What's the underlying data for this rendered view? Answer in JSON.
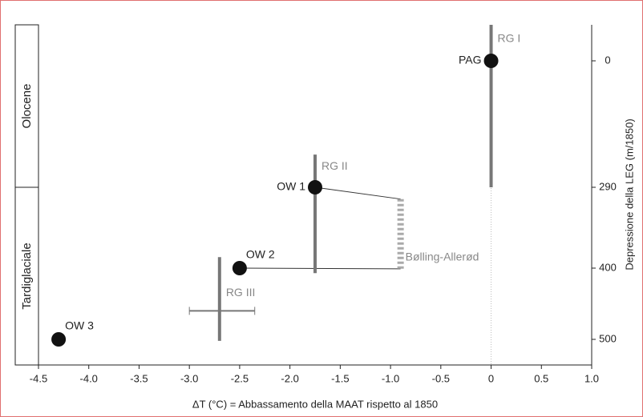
{
  "chart_data": {
    "type": "scatter",
    "xlabel": "ΔT (°C) = Abbassamento della MAAT rispetto al 1850",
    "ylabel": "Depressione della LEG (m/1850)",
    "xlim": [
      -4.5,
      1.0
    ],
    "xticks": [
      -4.5,
      {
        "value": -4.0,
        "label": "-4.0"
      },
      -3.5,
      {
        "value": -3.0,
        "label": "-3.0"
      },
      -2.5,
      {
        "value": -2.0,
        "label": "-2.0"
      },
      -1.5,
      {
        "value": -1.0,
        "label": "-1.0"
      },
      -0.5,
      0,
      0.5,
      {
        "value": 1.0,
        "label": "1.0"
      }
    ],
    "ylim": [
      -80,
      535
    ],
    "yticks": [
      0,
      290,
      400,
      500
    ],
    "periods": [
      {
        "label": "Olocene",
        "y": [
          -80,
          290
        ]
      },
      {
        "label": "Tardiglaciale",
        "y": [
          290,
          535
        ]
      }
    ],
    "points": [
      {
        "label": "PAG",
        "x": 0,
        "y": 0
      },
      {
        "label": "OW 1",
        "x": -1.75,
        "y": 290
      },
      {
        "label": "OW 2",
        "x": -2.5,
        "y": 400
      },
      {
        "label": "OW 3",
        "x": -4.3,
        "y": 500
      }
    ],
    "ranges": [
      {
        "label": "RG I",
        "x": 0,
        "y": [
          -80,
          290
        ],
        "color": "#777777"
      },
      {
        "label": "RG II",
        "x": -1.75,
        "y": [
          215,
          407
        ],
        "color": "#777777"
      },
      {
        "label": "RG III",
        "x": -2.7,
        "y": [
          385,
          502
        ],
        "color": "#777777",
        "xrange": [
          -3.0,
          -2.35
        ],
        "xrange_y": 460
      },
      {
        "label": "Bølling-Allerød",
        "x": -0.9,
        "y": [
          306,
          401
        ],
        "color": "#aaaaaa",
        "dashed": true
      }
    ],
    "point_color": "#111111"
  }
}
